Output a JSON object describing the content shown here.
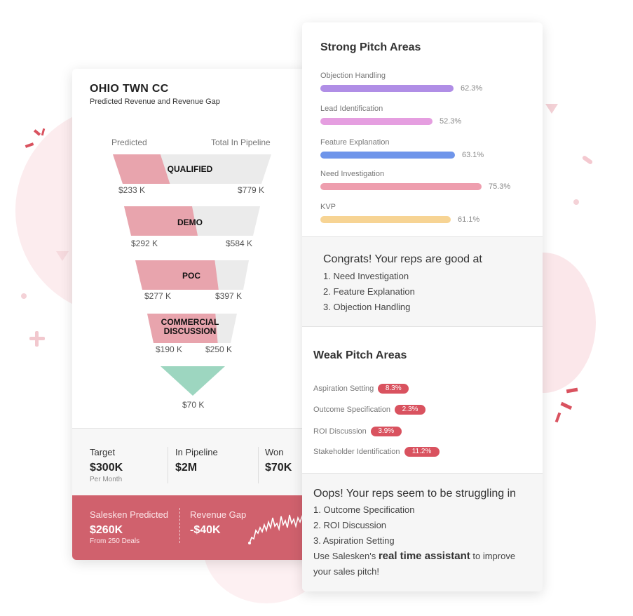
{
  "theme": {
    "accent": "#d0616d",
    "pill": "#d9525f",
    "funnel_predicted": "#e8a4ad",
    "funnel_pipeline": "#ebebeb",
    "funnel_bottom": "#9dd6c0"
  },
  "left_card": {
    "title": "OHIO TWN CC",
    "subtitle": "Predicted Revenue and Revenue Gap",
    "col_predicted": "Predicted",
    "col_pipeline": "Total In Pipeline",
    "stages": [
      {
        "label_line1": "QUALIFIED",
        "label_line2": "",
        "predicted": "$233 K",
        "pipeline": "$779 K",
        "predicted_ratio": 0.3
      },
      {
        "label_line1": "DEMO",
        "label_line2": "",
        "predicted": "$292 K",
        "pipeline": "$584 K",
        "predicted_ratio": 0.5
      },
      {
        "label_line1": "POC",
        "label_line2": "",
        "predicted": "$277 K",
        "pipeline": "$397 K",
        "predicted_ratio": 0.7
      },
      {
        "label_line1": "COMMERCIAL",
        "label_line2": "DISCUSSION",
        "predicted": "$190 K",
        "pipeline": "$250 K",
        "predicted_ratio": 0.76
      }
    ],
    "bottom_value": "$70 K",
    "stats": {
      "target_label": "Target",
      "target_value": "$300K",
      "target_note": "Per Month",
      "pipeline_label": "In Pipeline",
      "pipeline_value": "$2M",
      "won_label": "Won",
      "won_value": "$70K"
    },
    "predict": {
      "predicted_label": "Salesken Predicted",
      "predicted_value": "$260K",
      "predicted_note": "From 250 Deals",
      "gap_label": "Revenue Gap",
      "gap_value": "-$40K",
      "sparkline_icon": "sparkline-chart-icon"
    }
  },
  "right_card": {
    "strong_title": "Strong Pitch Areas",
    "strong": [
      {
        "label": "Objection Handling",
        "pct": "62.3%",
        "value": 62.3,
        "color": "#b08ee6"
      },
      {
        "label": "Lead Identification",
        "pct": "52.3%",
        "value": 52.3,
        "color": "#e59ee0"
      },
      {
        "label": "Feature Explanation",
        "pct": "63.1%",
        "value": 63.1,
        "color": "#6f95ea"
      },
      {
        "label": "Need Investigation",
        "pct": "75.3%",
        "value": 75.3,
        "color": "#ee9eae"
      },
      {
        "label": "KVP",
        "pct": "61.1%",
        "value": 61.1,
        "color": "#f7d494"
      }
    ],
    "congrats_title": "Congrats! Your reps are good at",
    "congrats_items": [
      "1. Need Investigation",
      "2. Feature Explanation",
      "3. Objection Handling"
    ],
    "weak_title": "Weak Pitch Areas",
    "weak": [
      {
        "label": "Aspiration Setting",
        "pct": "8.3%"
      },
      {
        "label": "Outcome Specification",
        "pct": "2.3%"
      },
      {
        "label": "ROI Discussion",
        "pct": "3.9%"
      },
      {
        "label": "Stakeholder Identification",
        "pct": "11.2%"
      }
    ],
    "oops_title": "Oops! Your reps seem to be struggling in",
    "oops_items": [
      "1. Outcome Specification",
      "2. ROI Discussion",
      "3. Aspiration Setting"
    ],
    "cta_prefix": "Use Salesken's",
    "cta_bold": "real time assistant",
    "cta_suffix": "to improve your sales pitch!"
  }
}
